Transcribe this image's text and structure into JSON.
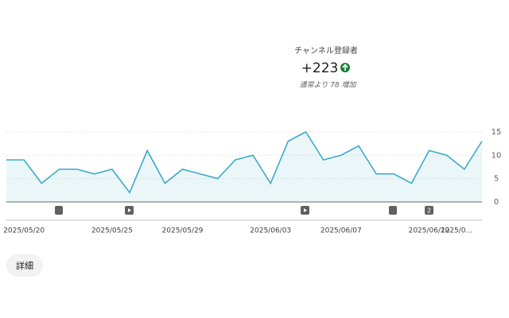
{
  "header": {
    "metric_label": "チャンネル登録者",
    "metric_value": "+223",
    "comparison": "通常より 78 増加"
  },
  "chart_data": {
    "type": "line",
    "categories": [
      null,
      "2025/05/20",
      null,
      null,
      null,
      null,
      "2025/05/25",
      null,
      null,
      null,
      "2025/05/29",
      null,
      null,
      null,
      null,
      "2025/06/03",
      null,
      null,
      null,
      "2025/06/07",
      null,
      null,
      null,
      null,
      "2025/06/12",
      null,
      "2025/0...",
      null
    ],
    "series": [
      {
        "color": "#3aa9c9",
        "values": [
          9,
          9,
          4,
          7,
          7,
          6,
          7,
          2,
          11,
          4,
          7,
          6,
          5,
          9,
          10,
          4,
          13,
          15,
          9,
          10,
          12,
          6,
          6,
          4,
          11,
          10,
          7,
          13
        ]
      }
    ],
    "ylim": [
      0,
      16
    ],
    "yticks": [
      0,
      5,
      10,
      15
    ],
    "grid": true,
    "marker_badge": "2"
  },
  "details_button": "詳細"
}
